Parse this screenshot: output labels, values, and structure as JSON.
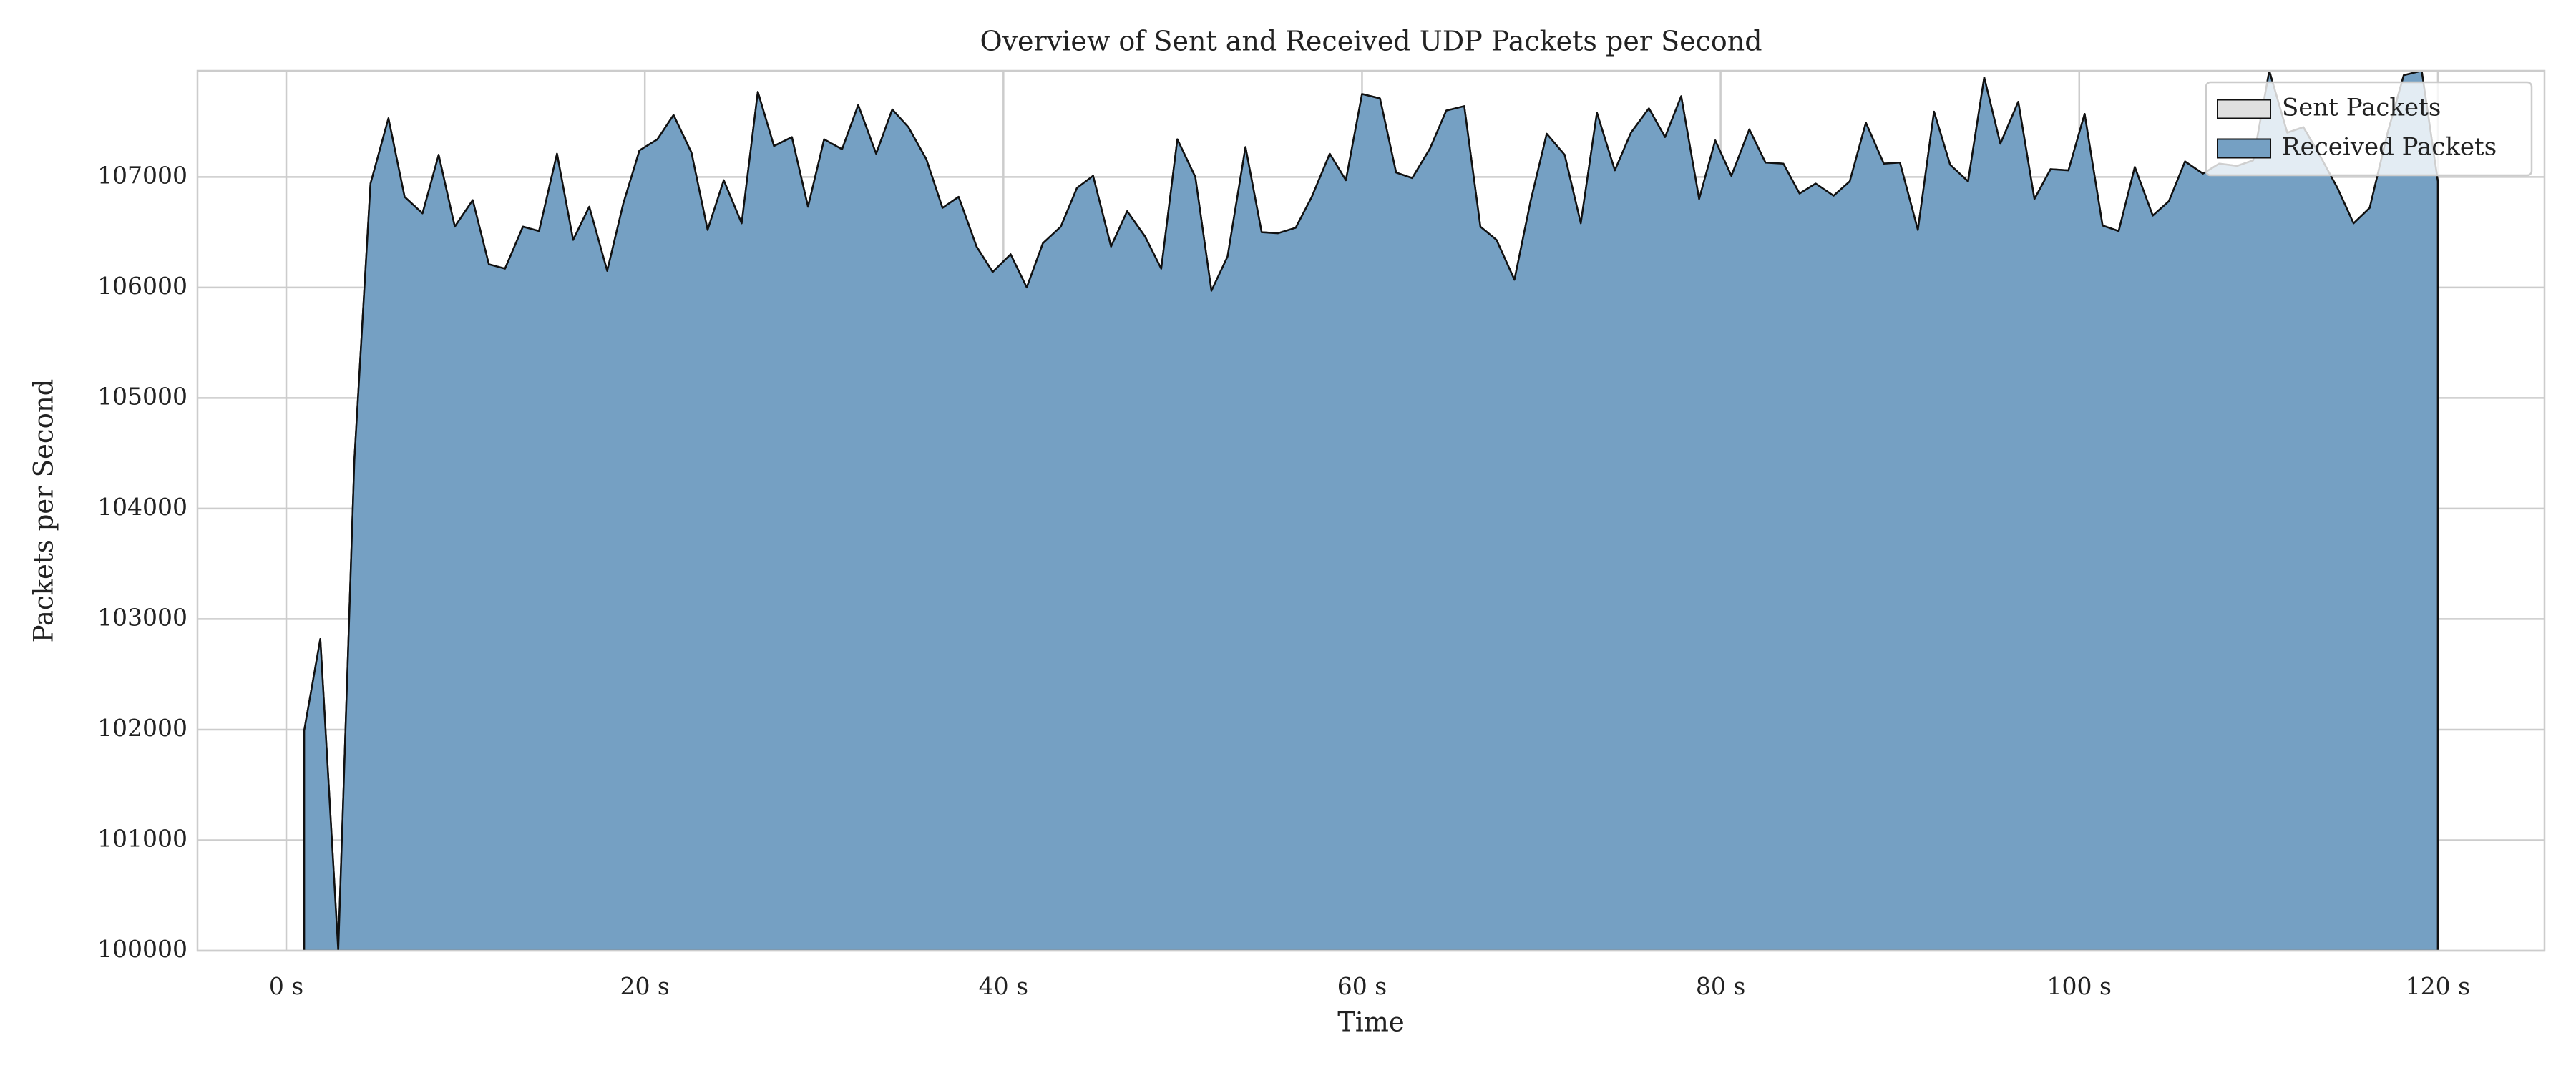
{
  "chart_data": {
    "type": "area",
    "title": "Overview of Sent and Received UDP Packets per Second",
    "xlabel": "Time",
    "ylabel": "Packets per Second",
    "x": [
      1.0,
      1.9,
      2.9,
      3.8,
      4.7,
      5.7,
      6.6,
      7.6,
      8.5,
      9.4,
      10.4,
      11.3,
      12.2,
      13.2,
      14.1,
      15.1,
      16.0,
      16.9,
      17.9,
      18.8,
      19.7,
      20.7,
      21.6,
      22.6,
      23.5,
      24.4,
      25.4,
      26.3,
      27.2,
      28.2,
      29.1,
      30.0,
      31.0,
      31.9,
      32.9,
      33.8,
      34.7,
      35.7,
      36.6,
      37.5,
      38.5,
      39.4,
      40.4,
      41.3,
      42.2,
      43.2,
      44.1,
      45.0,
      46.0,
      46.9,
      47.9,
      48.8,
      49.7,
      50.7,
      51.6,
      52.5,
      53.5,
      54.4,
      55.3,
      56.3,
      57.2,
      58.2,
      59.1,
      60.0,
      61.0,
      61.9,
      62.8,
      63.8,
      64.7,
      65.7,
      66.6,
      67.5,
      68.5,
      69.4,
      70.3,
      71.3,
      72.2,
      73.1,
      74.1,
      75.0,
      76.0,
      76.9,
      77.8,
      78.8,
      79.7,
      80.6,
      81.6,
      82.5,
      83.5,
      84.4,
      85.3,
      86.3,
      87.2,
      88.1,
      89.1,
      90.0,
      91.0,
      91.9,
      92.8,
      93.8,
      94.7,
      95.6,
      96.6,
      97.5,
      98.4,
      99.4,
      100.3,
      101.3,
      102.2,
      103.1,
      104.1,
      105.0,
      105.9,
      106.9,
      107.8,
      108.8,
      109.7,
      110.6,
      111.6,
      112.5,
      113.4,
      114.4,
      115.3,
      116.2,
      117.2,
      118.1,
      119.1,
      120.0
    ],
    "series": [
      {
        "name": "Sent Packets",
        "color": "#e0e0e0",
        "values": [
          101990,
          102820,
          100000,
          104440,
          106940,
          107530,
          106820,
          106670,
          107200,
          106550,
          106790,
          106210,
          106170,
          106550,
          106510,
          107210,
          106430,
          106730,
          106150,
          106760,
          107240,
          107340,
          107560,
          107220,
          106520,
          106970,
          106580,
          107770,
          107280,
          107360,
          106730,
          107340,
          107250,
          107650,
          107210,
          107610,
          107450,
          107160,
          106720,
          106820,
          106370,
          106140,
          106300,
          106000,
          106400,
          106550,
          106900,
          107010,
          106370,
          106690,
          106460,
          106170,
          107340,
          107000,
          105970,
          106280,
          107270,
          106500,
          106490,
          106540,
          106820,
          107210,
          106970,
          107750,
          107710,
          107040,
          106990,
          107260,
          107600,
          107640,
          106550,
          106430,
          106070,
          106780,
          107390,
          107200,
          106580,
          107580,
          107060,
          107400,
          107620,
          107360,
          107730,
          106800,
          107330,
          107010,
          107430,
          107130,
          107120,
          106850,
          106940,
          106830,
          106960,
          107490,
          107120,
          107130,
          106520,
          107590,
          107110,
          106960,
          107900,
          107300,
          107680,
          106800,
          107070,
          107060,
          107570,
          106560,
          106510,
          107090,
          106650,
          106780,
          107140,
          107030,
          107120,
          107100,
          107150,
          107960,
          107400,
          107450,
          107200,
          106900,
          106580,
          106720,
          107400,
          107920,
          107960,
          106960
        ]
      },
      {
        "name": "Received Packets",
        "color": "#75a0c3",
        "values": [
          101990,
          102820,
          100000,
          104440,
          106940,
          107530,
          106820,
          106670,
          107200,
          106550,
          106790,
          106210,
          106170,
          106550,
          106510,
          107210,
          106430,
          106730,
          106150,
          106760,
          107240,
          107340,
          107560,
          107220,
          106520,
          106970,
          106580,
          107770,
          107280,
          107360,
          106730,
          107340,
          107250,
          107650,
          107210,
          107610,
          107450,
          107160,
          106720,
          106820,
          106370,
          106140,
          106300,
          106000,
          106400,
          106550,
          106900,
          107010,
          106370,
          106690,
          106460,
          106170,
          107340,
          107000,
          105970,
          106280,
          107270,
          106500,
          106490,
          106540,
          106820,
          107210,
          106970,
          107750,
          107710,
          107040,
          106990,
          107260,
          107600,
          107640,
          106550,
          106430,
          106070,
          106780,
          107390,
          107200,
          106580,
          107580,
          107060,
          107400,
          107620,
          107360,
          107730,
          106800,
          107330,
          107010,
          107430,
          107130,
          107120,
          106850,
          106940,
          106830,
          106960,
          107490,
          107120,
          107130,
          106520,
          107590,
          107110,
          106960,
          107900,
          107300,
          107680,
          106800,
          107070,
          107060,
          107570,
          106560,
          106510,
          107090,
          106650,
          106780,
          107140,
          107030,
          107120,
          107100,
          107150,
          107960,
          107400,
          107450,
          107200,
          106900,
          106580,
          106720,
          107400,
          107920,
          107960,
          106960
        ]
      }
    ],
    "xlim": [
      -4.95,
      125.95
    ],
    "xticks": [
      {
        "value": 0,
        "label": "0 s"
      },
      {
        "value": 20,
        "label": "20 s"
      },
      {
        "value": 40,
        "label": "40 s"
      },
      {
        "value": 60,
        "label": "60 s"
      },
      {
        "value": 80,
        "label": "80 s"
      },
      {
        "value": 100,
        "label": "100 s"
      },
      {
        "value": 120,
        "label": "120 s"
      }
    ],
    "ylim": [
      100000,
      107960
    ],
    "yticks": [
      100000,
      101000,
      102000,
      103000,
      104000,
      105000,
      106000,
      107000
    ],
    "grid": true,
    "legend": "upper right"
  }
}
